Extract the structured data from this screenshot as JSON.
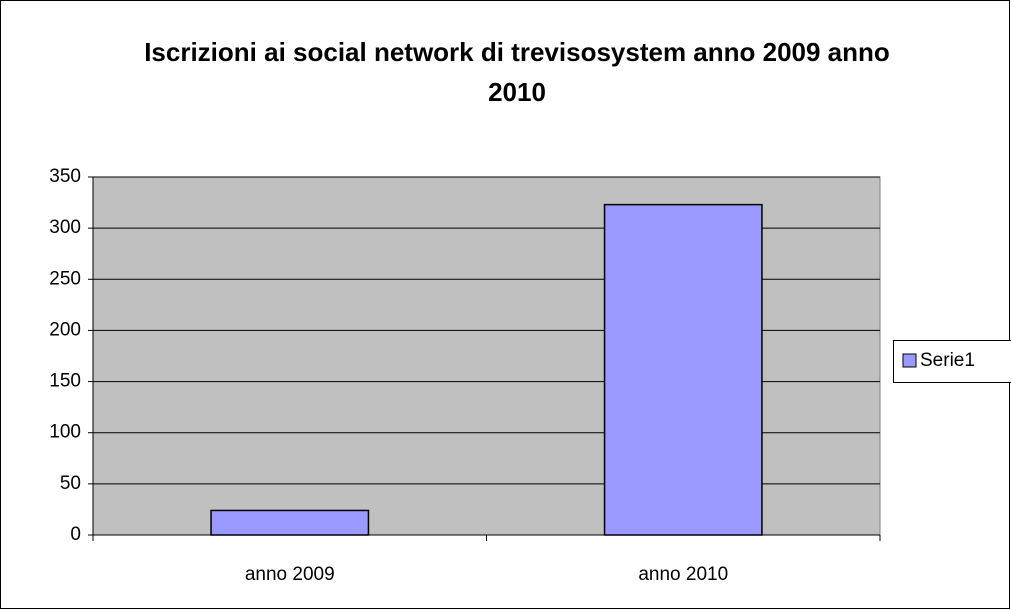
{
  "chart_data": {
    "type": "bar",
    "title": "Iscrizioni ai social network di trevisosystem anno 2009 anno 2010",
    "categories": [
      "anno 2009",
      "anno 2010"
    ],
    "series": [
      {
        "name": "Serie1",
        "color": "#9999ff",
        "values": [
          24,
          323
        ]
      }
    ],
    "ylim": [
      0,
      350
    ],
    "yticks": [
      0,
      50,
      100,
      150,
      200,
      250,
      300,
      350
    ],
    "grid": true,
    "legend": "right"
  }
}
